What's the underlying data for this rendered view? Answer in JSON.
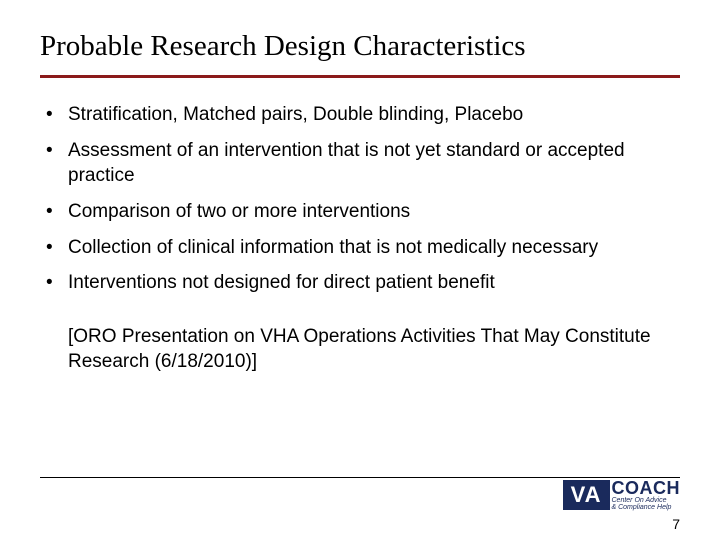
{
  "title": "Probable Research Design Characteristics",
  "bullets": [
    "Stratification, Matched pairs, Double blinding, Placebo",
    "Assessment of an intervention that is not yet standard or accepted practice",
    "Comparison of two or more interventions",
    "Collection of clinical information that is not medically necessary",
    "Interventions not designed for direct patient benefit"
  ],
  "citation": "[ORO Presentation on VHA Operations Activities That May Constitute Research (6/18/2010)]",
  "logo": {
    "va": "VA",
    "coach": "COACH",
    "sub1": "Center On Advice",
    "sub2": "& Compliance Help"
  },
  "page_number": "7",
  "colors": {
    "title_rule": "#8b1a1a",
    "logo_bg": "#1a2a5c",
    "text": "#000000",
    "background": "#ffffff"
  },
  "typography": {
    "title_fontsize": 29,
    "body_fontsize": 19,
    "pagenum_fontsize": 14,
    "title_family": "serif",
    "body_family": "sans-serif"
  }
}
